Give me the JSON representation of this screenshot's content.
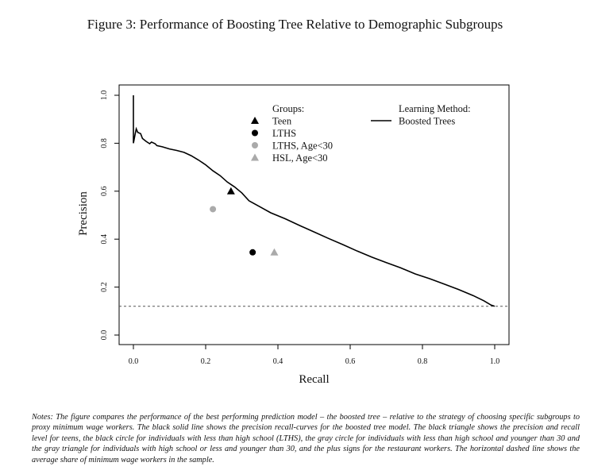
{
  "figure": {
    "title": "Figure 3: Performance of Boosting Tree Relative to Demographic Subgroups",
    "notes": "Notes: The figure compares the performance of the best performing prediction model – the boosted tree – relative to the strategy of choosing specific subgroups to proxy minimum wage workers. The black solid line shows the precision recall-curves for the boosted tree model. The black triangle shows the precision and recall level for teens, the black circle for individuals with less than high school (LTHS), the gray circle for individuals with less than high school and younger than 30 and the gray triangle for individuals with high school or less and younger than 30, and the plus signs for the restaurant workers. The horizontal dashed line shows the average share of minimum wage workers in the sample."
  },
  "chart_data": {
    "type": "line",
    "xlabel": "Recall",
    "ylabel": "Precision",
    "xlim": [
      0,
      1
    ],
    "ylim": [
      0,
      1
    ],
    "xticks": [
      "0.0",
      "0.2",
      "0.4",
      "0.6",
      "0.8",
      "1.0"
    ],
    "yticks": [
      "0.0",
      "0.2",
      "0.4",
      "0.6",
      "0.8",
      "1.0"
    ],
    "grid": false,
    "series": [
      {
        "name": "Boosted Trees",
        "color": "#000000",
        "points": [
          [
            0.0,
            1.0
          ],
          [
            0.0,
            0.8
          ],
          [
            0.005,
            0.84
          ],
          [
            0.008,
            0.86
          ],
          [
            0.012,
            0.845
          ],
          [
            0.02,
            0.84
          ],
          [
            0.025,
            0.82
          ],
          [
            0.035,
            0.808
          ],
          [
            0.045,
            0.798
          ],
          [
            0.05,
            0.805
          ],
          [
            0.06,
            0.798
          ],
          [
            0.065,
            0.79
          ],
          [
            0.08,
            0.785
          ],
          [
            0.1,
            0.776
          ],
          [
            0.12,
            0.77
          ],
          [
            0.14,
            0.762
          ],
          [
            0.16,
            0.748
          ],
          [
            0.18,
            0.73
          ],
          [
            0.2,
            0.71
          ],
          [
            0.22,
            0.685
          ],
          [
            0.24,
            0.665
          ],
          [
            0.26,
            0.638
          ],
          [
            0.28,
            0.618
          ],
          [
            0.3,
            0.593
          ],
          [
            0.32,
            0.56
          ],
          [
            0.35,
            0.535
          ],
          [
            0.38,
            0.51
          ],
          [
            0.42,
            0.485
          ],
          [
            0.46,
            0.457
          ],
          [
            0.5,
            0.43
          ],
          [
            0.54,
            0.403
          ],
          [
            0.58,
            0.377
          ],
          [
            0.62,
            0.35
          ],
          [
            0.66,
            0.325
          ],
          [
            0.7,
            0.302
          ],
          [
            0.74,
            0.28
          ],
          [
            0.78,
            0.255
          ],
          [
            0.82,
            0.235
          ],
          [
            0.86,
            0.213
          ],
          [
            0.9,
            0.19
          ],
          [
            0.94,
            0.165
          ],
          [
            0.97,
            0.143
          ],
          [
            0.99,
            0.125
          ],
          [
            1.0,
            0.12
          ]
        ]
      }
    ],
    "baseline": {
      "y": 0.12,
      "style": "dashed",
      "color": "#555555"
    },
    "markers": [
      {
        "name": "Teen",
        "shape": "triangle",
        "color": "#000000",
        "x": 0.27,
        "y": 0.6
      },
      {
        "name": "LTHS",
        "shape": "circle",
        "color": "#000000",
        "x": 0.33,
        "y": 0.345
      },
      {
        "name": "LTHS, Age<30",
        "shape": "circle",
        "color": "#aaaaaa",
        "x": 0.22,
        "y": 0.525
      },
      {
        "name": "HSL, Age<30",
        "shape": "triangle",
        "color": "#aaaaaa",
        "x": 0.39,
        "y": 0.345
      }
    ],
    "legend_groups": {
      "title": "Groups:",
      "placement": "top-center",
      "items": [
        {
          "label": "Teen",
          "shape": "triangle",
          "color": "#000000"
        },
        {
          "label": "LTHS",
          "shape": "circle",
          "color": "#000000"
        },
        {
          "label": "LTHS, Age<30",
          "shape": "circle",
          "color": "#aaaaaa"
        },
        {
          "label": "HSL, Age<30",
          "shape": "triangle",
          "color": "#aaaaaa"
        }
      ]
    },
    "legend_method": {
      "title": "Learning Method:",
      "placement": "top-right",
      "items": [
        {
          "label": "Boosted Trees",
          "shape": "line",
          "color": "#000000"
        }
      ]
    }
  }
}
